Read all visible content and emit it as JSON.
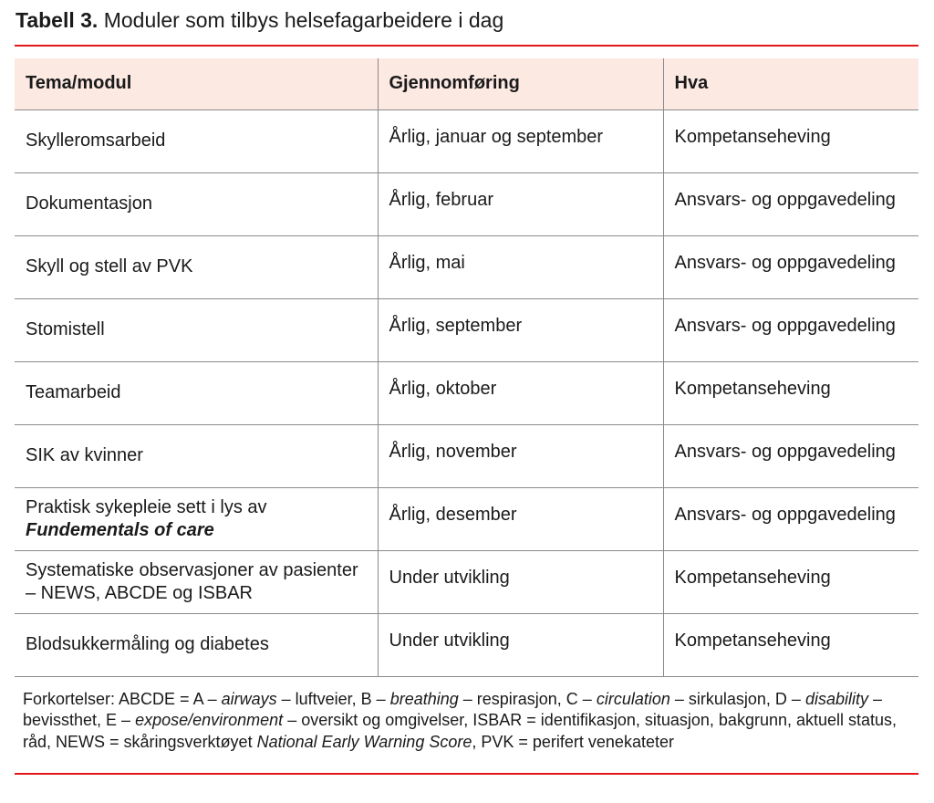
{
  "title": {
    "label": "Tabell 3.",
    "text": "Moduler som tilbys helsefagarbeidere i dag"
  },
  "table": {
    "headers": [
      "Tema/modul",
      "Gjennomføring",
      "Hva"
    ],
    "rows": [
      {
        "tema": "Skylleromsarbeid",
        "tema_italic": "",
        "gjennomforing": "Årlig, januar og september",
        "hva": "Kompetanseheving"
      },
      {
        "tema": "Dokumentasjon",
        "tema_italic": "",
        "gjennomforing": "Årlig, februar",
        "hva": "Ansvars- og oppgavedeling"
      },
      {
        "tema": "Skyll og stell av PVK",
        "tema_italic": "",
        "gjennomforing": "Årlig, mai",
        "hva": "Ansvars- og oppgavedeling"
      },
      {
        "tema": "Stomistell",
        "tema_italic": "",
        "gjennomforing": "Årlig, september",
        "hva": "Ansvars- og oppgavedeling"
      },
      {
        "tema": "Teamarbeid",
        "tema_italic": "",
        "gjennomforing": "Årlig, oktober",
        "hva": "Kompetanseheving"
      },
      {
        "tema": "SIK av kvinner",
        "tema_italic": "",
        "gjennomforing": "Årlig, november",
        "hva": "Ansvars- og oppgavedeling"
      },
      {
        "tema": "Praktisk sykepleie sett i lys av",
        "tema_italic": "Fundementals of care",
        "gjennomforing": "Årlig, desember",
        "hva": "Ansvars- og oppgavedeling"
      },
      {
        "tema": "Systematiske observasjoner av pasienter – NEWS, ABCDE og ISBAR",
        "tema_italic": "",
        "gjennomforing": "Under utvikling",
        "hva": "Kompetanseheving"
      },
      {
        "tema": "Blodsukkermåling og diabetes",
        "tema_italic": "",
        "gjennomforing": "Under utvikling",
        "hva": "Kompetanseheving"
      }
    ]
  },
  "footnote": [
    {
      "t": "Forkortelser: ABCDE = A – ",
      "i": false
    },
    {
      "t": "airways",
      "i": true
    },
    {
      "t": " – luftveier, B – ",
      "i": false
    },
    {
      "t": "breathing",
      "i": true
    },
    {
      "t": " – respirasjon, C – ",
      "i": false
    },
    {
      "t": "circulation",
      "i": true
    },
    {
      "t": " – sirkulasjon, D – ",
      "i": false
    },
    {
      "t": "disability",
      "i": true
    },
    {
      "t": " – bevissthet, E – ",
      "i": false
    },
    {
      "t": "expose/environment",
      "i": true
    },
    {
      "t": " – oversikt og omgivelser, ISBAR = identifikasjon, situasjon, bakgrunn, aktuell status, råd, NEWS = skåringsverktøyet ",
      "i": false
    },
    {
      "t": "National Early Warning Score",
      "i": true
    },
    {
      "t": ", PVK = perifert venekateter",
      "i": false
    }
  ],
  "colors": {
    "accent_rule": "#e3161b",
    "header_bg": "#fce9e2"
  }
}
